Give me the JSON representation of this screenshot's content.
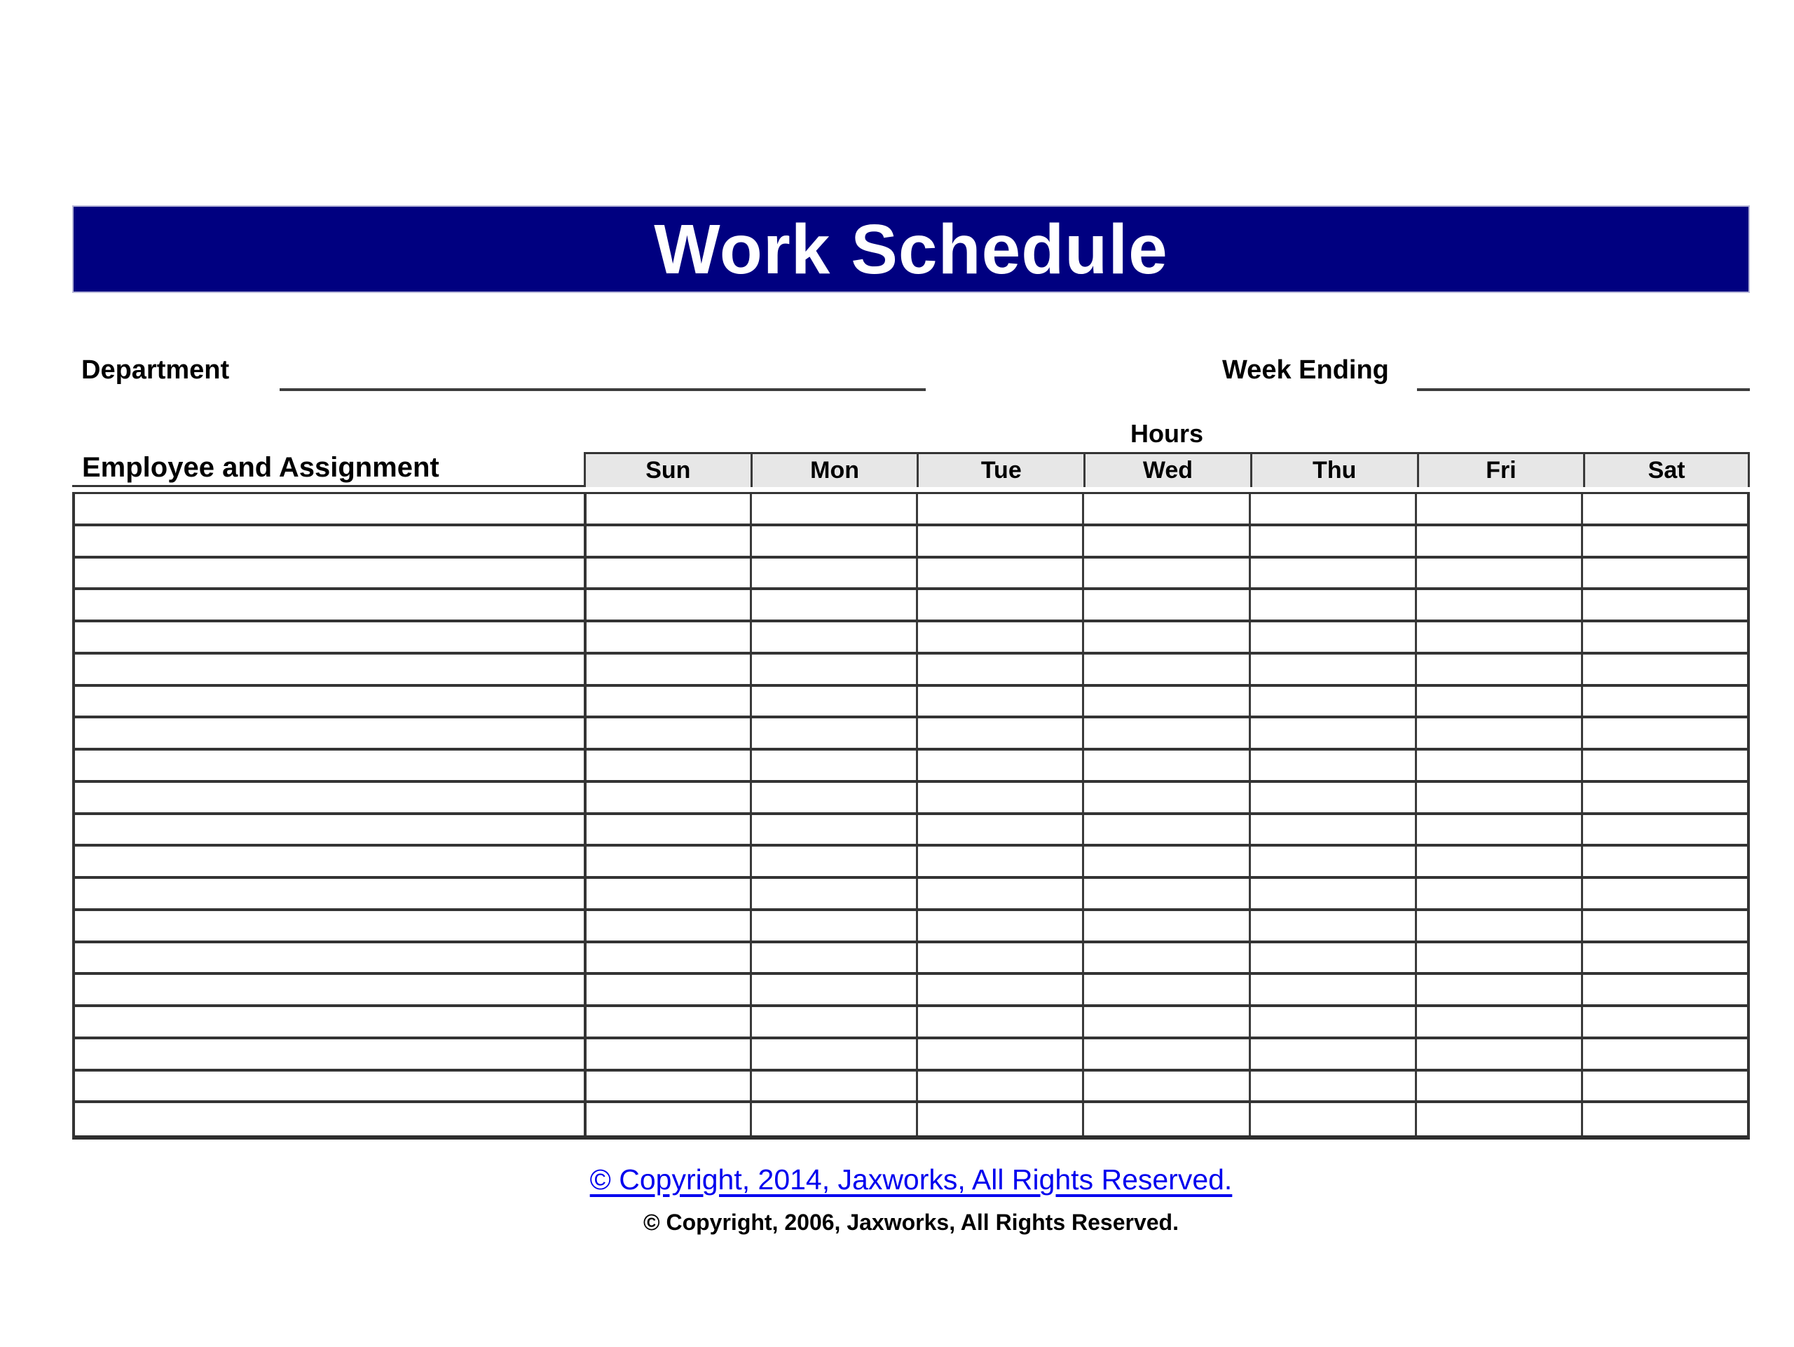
{
  "page": {
    "title": "Work Schedule"
  },
  "fields": {
    "department": {
      "label": "Department",
      "value": ""
    },
    "week_ending": {
      "label": "Week Ending",
      "value": ""
    }
  },
  "table": {
    "hours_label": "Hours",
    "employee_header": "Employee and Assignment",
    "day_headers": [
      "Sun",
      "Mon",
      "Tue",
      "Wed",
      "Thu",
      "Fri",
      "Sat"
    ],
    "row_count": 20,
    "cell_values": []
  },
  "footer": {
    "copyright_2014": "© Copyright, 2014, Jaxworks, All Rights Reserved.",
    "copyright_2006": "© Copyright, 2006, Jaxworks, All Rights Reserved."
  },
  "colors": {
    "banner_bg": "#000080",
    "banner_text": "#ffffff",
    "banner_border": "#b7b7d9",
    "day_header_bg": "#e7e7e7",
    "grid_line": "#343434",
    "field_line": "#3d3d3d",
    "link_blue": "#0000ee"
  }
}
